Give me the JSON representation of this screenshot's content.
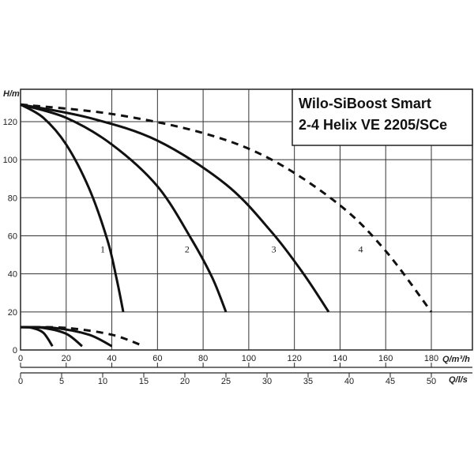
{
  "chart_data": {
    "type": "line",
    "title_lines": [
      "Wilo-SiBoost Smart",
      "2-4 Helix VE 2205/SCe"
    ],
    "ylabel": "H/m",
    "xlabel_flow_m3h": "Q/m³/h",
    "xlabel_flow_ls": "Q/l/s",
    "xlim_m3h": [
      0,
      198
    ],
    "ylim": [
      0,
      137
    ],
    "y_ticks": [
      0,
      20,
      40,
      60,
      80,
      100,
      120
    ],
    "x_ticks_m3h": [
      0,
      20,
      40,
      60,
      80,
      100,
      120,
      140,
      160,
      180
    ],
    "x_ticks_ls": [
      0,
      5,
      10,
      15,
      20,
      25,
      30,
      35,
      40,
      45,
      50
    ],
    "grid": true,
    "series": [
      {
        "name": "1",
        "style": "solid",
        "label_at": [
          36,
          53
        ],
        "points": [
          [
            0,
            129
          ],
          [
            10,
            122
          ],
          [
            20,
            108
          ],
          [
            30,
            85
          ],
          [
            38,
            58
          ],
          [
            42,
            38
          ],
          [
            45,
            20
          ]
        ]
      },
      {
        "name": "2",
        "style": "solid",
        "label_at": [
          73,
          53
        ],
        "points": [
          [
            0,
            129
          ],
          [
            20,
            122
          ],
          [
            40,
            108
          ],
          [
            60,
            86
          ],
          [
            75,
            58
          ],
          [
            84,
            38
          ],
          [
            90,
            20
          ]
        ]
      },
      {
        "name": "3",
        "style": "solid",
        "label_at": [
          111,
          53
        ],
        "points": [
          [
            0,
            129
          ],
          [
            30,
            122
          ],
          [
            60,
            110
          ],
          [
            90,
            87
          ],
          [
            110,
            62
          ],
          [
            124,
            40
          ],
          [
            135,
            20
          ]
        ]
      },
      {
        "name": "4",
        "style": "dashed",
        "label_at": [
          149,
          53
        ],
        "points": [
          [
            0,
            129
          ],
          [
            40,
            124
          ],
          [
            80,
            114
          ],
          [
            110,
            100
          ],
          [
            140,
            76
          ],
          [
            160,
            52
          ],
          [
            180,
            20
          ]
        ]
      },
      {
        "name": "1",
        "style": "solid",
        "points": [
          [
            0,
            12
          ],
          [
            5,
            11.6
          ],
          [
            10,
            9
          ],
          [
            14,
            2
          ]
        ]
      },
      {
        "name": "2",
        "style": "solid",
        "points": [
          [
            0,
            12
          ],
          [
            10,
            11.6
          ],
          [
            20,
            8.5
          ],
          [
            27,
            2
          ]
        ]
      },
      {
        "name": "3",
        "style": "solid",
        "points": [
          [
            0,
            12
          ],
          [
            15,
            11.6
          ],
          [
            30,
            8
          ],
          [
            40,
            2
          ]
        ]
      },
      {
        "name": "4",
        "style": "dashed",
        "points": [
          [
            0,
            12
          ],
          [
            20,
            11.6
          ],
          [
            40,
            8
          ],
          [
            54,
            2
          ]
        ]
      }
    ]
  }
}
